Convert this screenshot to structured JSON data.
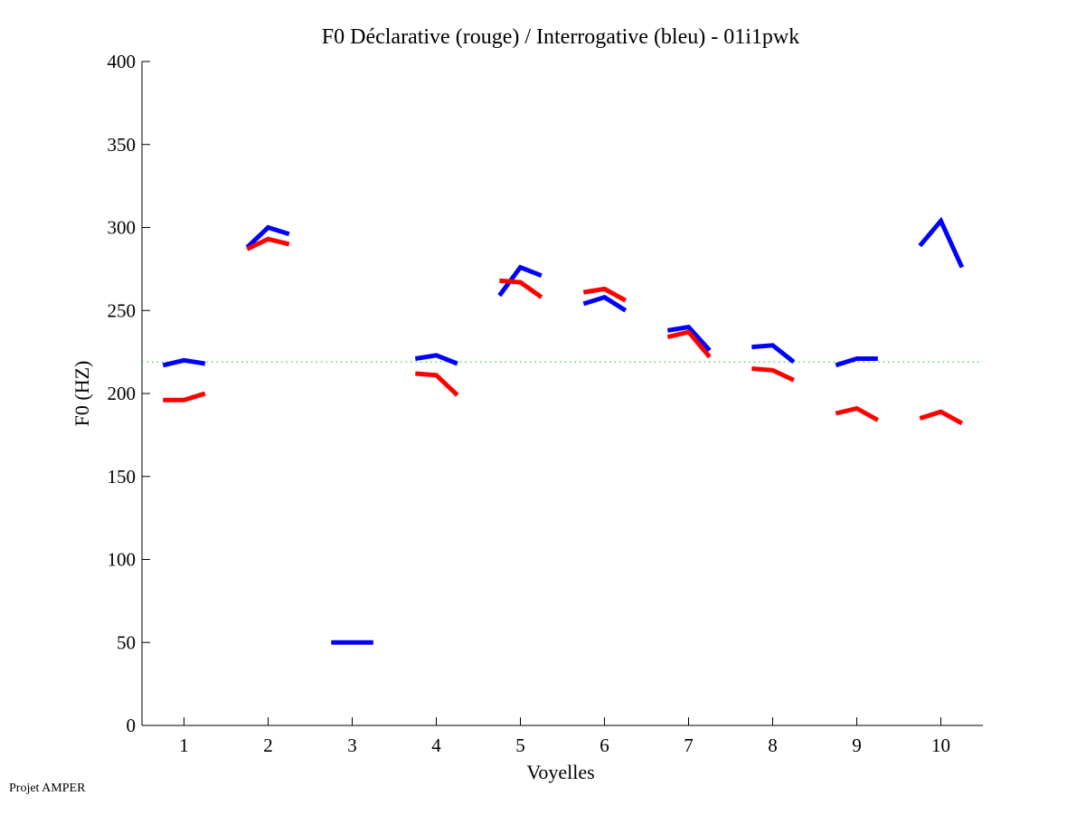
{
  "chart_data": {
    "type": "line",
    "title": "F0 Déclarative (rouge) / Interrogative (bleu) - 01i1pwk",
    "xlabel": "Voyelles",
    "ylabel": "F0 (HZ)",
    "xlim": [
      0.5,
      10.5
    ],
    "ylim": [
      0,
      400
    ],
    "xticks": [
      1,
      2,
      3,
      4,
      5,
      6,
      7,
      8,
      9,
      10
    ],
    "yticks": [
      0,
      50,
      100,
      150,
      200,
      250,
      300,
      350,
      400
    ],
    "grid": false,
    "reference_line": {
      "y": 219,
      "color": "#33cc33",
      "style": "dotted"
    },
    "point_offsets": [
      -0.25,
      0,
      0.25
    ],
    "series": [
      {
        "color": "#0000ff",
        "segments": [
          {
            "vowel": 1,
            "values": [
              217,
              220,
              218
            ]
          },
          {
            "vowel": 2,
            "values": [
              288,
              300,
              296
            ]
          },
          {
            "vowel": 3,
            "values": [
              50,
              50,
              50
            ]
          },
          {
            "vowel": 4,
            "values": [
              221,
              223,
              218
            ]
          },
          {
            "vowel": 5,
            "values": [
              259,
              276,
              271
            ]
          },
          {
            "vowel": 6,
            "values": [
              254,
              258,
              250
            ]
          },
          {
            "vowel": 7,
            "values": [
              238,
              240,
              226
            ]
          },
          {
            "vowel": 8,
            "values": [
              228,
              229,
              219
            ]
          },
          {
            "vowel": 9,
            "values": [
              217,
              221,
              221
            ]
          },
          {
            "vowel": 10,
            "values": [
              289,
              304,
              276
            ]
          }
        ]
      },
      {
        "color": "#ff0000",
        "segments": [
          {
            "vowel": 1,
            "values": [
              196,
              196,
              200
            ]
          },
          {
            "vowel": 2,
            "values": [
              287,
              293,
              290
            ]
          },
          {
            "vowel": 4,
            "values": [
              212,
              211,
              199
            ]
          },
          {
            "vowel": 5,
            "values": [
              268,
              267,
              258
            ]
          },
          {
            "vowel": 6,
            "values": [
              261,
              263,
              256
            ]
          },
          {
            "vowel": 7,
            "values": [
              234,
              237,
              222
            ]
          },
          {
            "vowel": 8,
            "values": [
              215,
              214,
              208
            ]
          },
          {
            "vowel": 9,
            "values": [
              188,
              191,
              184
            ]
          },
          {
            "vowel": 10,
            "values": [
              185,
              189,
              182
            ]
          }
        ]
      }
    ]
  },
  "footer": "Projet AMPER"
}
